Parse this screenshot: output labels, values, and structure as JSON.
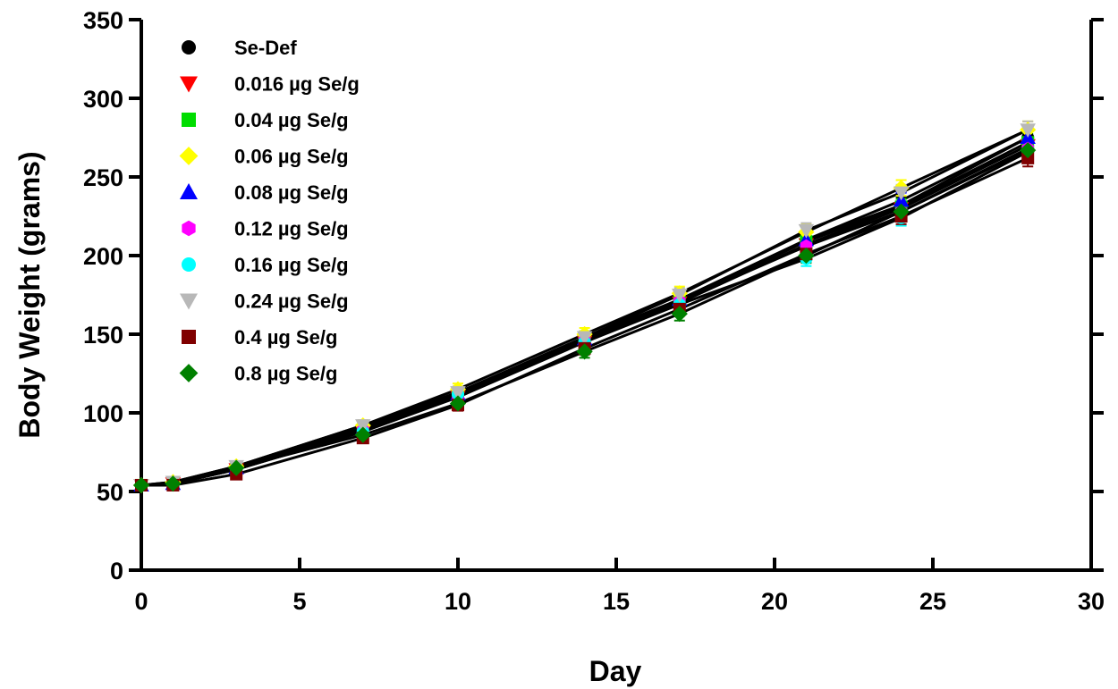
{
  "chart_data": {
    "type": "line",
    "title": "",
    "xlabel": "Day",
    "ylabel": "Body Weight (grams)",
    "xlim": [
      0,
      30
    ],
    "ylim": [
      0,
      350
    ],
    "xticks": [
      "0",
      "5",
      "10",
      "15",
      "20",
      "25",
      "30"
    ],
    "yticks": [
      "0",
      "50",
      "100",
      "150",
      "200",
      "250",
      "300",
      "350"
    ],
    "grid": false,
    "legend_position": "top-left",
    "x": [
      0,
      1,
      3,
      7,
      10,
      14,
      17,
      21,
      24,
      28
    ],
    "series": [
      {
        "name": "Se-Def",
        "color": "#000000",
        "marker": "circle",
        "values": [
          54,
          55,
          65,
          91,
          113,
          148,
          172,
          210,
          232,
          275
        ]
      },
      {
        "name": "0.016 µg Se/g",
        "color": "#ff0000",
        "marker": "triangle-down",
        "values": [
          54,
          55,
          64,
          88,
          110,
          145,
          170,
          207,
          230,
          270
        ]
      },
      {
        "name": "0.04 µg Se/g",
        "color": "#00dd00",
        "marker": "square",
        "values": [
          54,
          55,
          64,
          89,
          111,
          146,
          171,
          209,
          231,
          272
        ]
      },
      {
        "name": "0.06 µg Se/g",
        "color": "#ffff00",
        "marker": "diamond",
        "values": [
          54,
          56,
          66,
          92,
          115,
          150,
          176,
          215,
          243,
          280
        ]
      },
      {
        "name": "0.08 µg Se/g",
        "color": "#0000ff",
        "marker": "triangle-up",
        "values": [
          54,
          55,
          65,
          90,
          112,
          147,
          172,
          210,
          235,
          275
        ]
      },
      {
        "name": "0.12 µg Se/g",
        "color": "#ff00ff",
        "marker": "hexagon",
        "values": [
          54,
          55,
          64,
          89,
          110,
          146,
          171,
          206,
          228,
          268
        ]
      },
      {
        "name": "0.16 µg Se/g",
        "color": "#00ffff",
        "marker": "circle",
        "values": [
          54,
          55,
          64,
          88,
          112,
          145,
          169,
          198,
          224,
          266
        ]
      },
      {
        "name": "0.24 µg Se/g",
        "color": "#b8b8b8",
        "marker": "triangle-down",
        "values": [
          54,
          56,
          66,
          92,
          113,
          148,
          175,
          216,
          240,
          280
        ]
      },
      {
        "name": "0.4 µg Se/g",
        "color": "#800000",
        "marker": "square",
        "values": [
          54,
          54,
          61,
          84,
          105,
          141,
          166,
          201,
          225,
          262
        ]
      },
      {
        "name": "0.8 µg Se/g",
        "color": "#008000",
        "marker": "diamond",
        "values": [
          54,
          55,
          65,
          86,
          106,
          139,
          163,
          200,
          228,
          267
        ]
      }
    ],
    "error_bars": true
  }
}
